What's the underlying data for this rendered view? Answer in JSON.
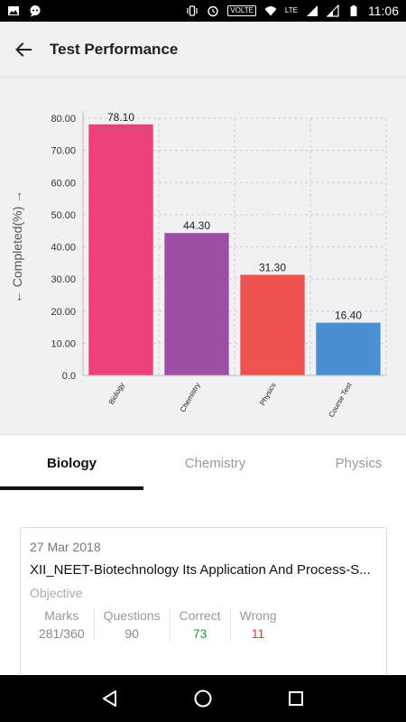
{
  "status_bar": {
    "time": "11:06",
    "volte": "VOLTE",
    "lte": "LTE",
    "icons": [
      "image-icon",
      "chat-icon",
      "vibrate-icon",
      "alarm-icon",
      "wifi-icon",
      "signal-icon",
      "signal-icon-2",
      "battery-icon"
    ]
  },
  "app_bar": {
    "title": "Test Performance",
    "back_icon": "arrow-back-icon"
  },
  "chart_data": {
    "type": "bar",
    "categories": [
      "Biology",
      "Chemistry",
      "Physics",
      "Course Test"
    ],
    "values": [
      78.1,
      44.3,
      31.3,
      16.4
    ],
    "value_labels": [
      "78.10",
      "44.30",
      "31.30",
      "16.40"
    ],
    "colors": [
      "#ec407a",
      "#9c4fa5",
      "#ef5350",
      "#4a8fd3"
    ],
    "ylabel": "←  Completed(%)  →",
    "xlabel": "",
    "title": "",
    "ylim": [
      0,
      80
    ],
    "yticks": [
      "0.0",
      "10.00",
      "20.00",
      "30.00",
      "40.00",
      "50.00",
      "60.00",
      "70.00",
      "80.00"
    ],
    "ytick_values": [
      0,
      10,
      20,
      30,
      40,
      50,
      60,
      70,
      80
    ],
    "grid": true
  },
  "tabs": [
    {
      "label": "Biology",
      "active": true
    },
    {
      "label": "Chemistry",
      "active": false
    },
    {
      "label": "Physics",
      "active": false
    }
  ],
  "card": {
    "date": "27 Mar 2018",
    "title": "XII_NEET-Biotechnology Its Application And Process-S...",
    "type": "Objective",
    "stats": [
      {
        "label": "Marks",
        "value": "281/360",
        "style": "normal"
      },
      {
        "label": "Questions",
        "value": "90",
        "style": "normal"
      },
      {
        "label": "Correct",
        "value": "73",
        "style": "green"
      },
      {
        "label": "Wrong",
        "value": "11",
        "style": "red"
      }
    ]
  },
  "nav_bar": {
    "icons": [
      "nav-back-icon",
      "nav-home-icon",
      "nav-recents-icon"
    ]
  }
}
